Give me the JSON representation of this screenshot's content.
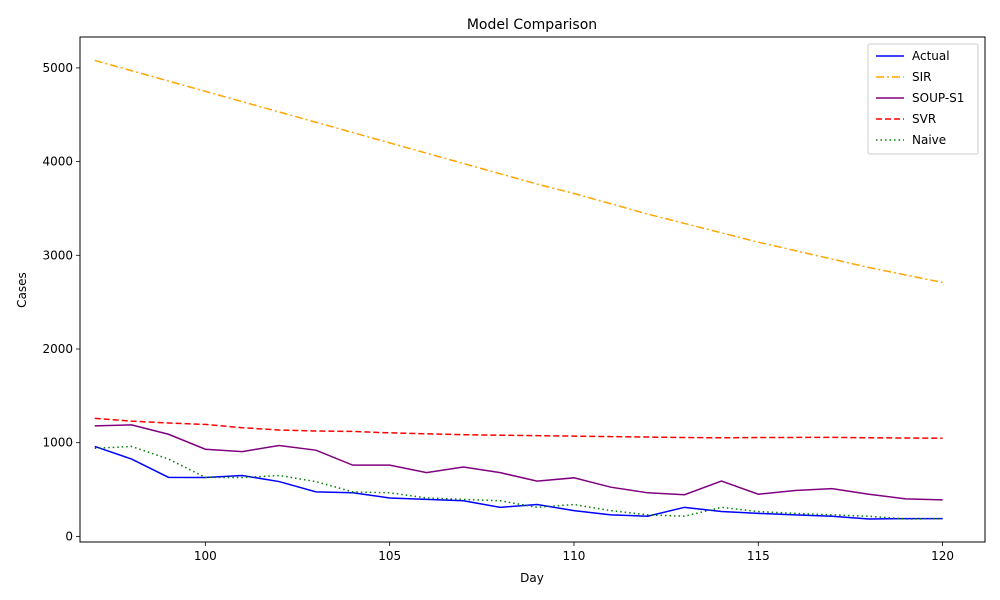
{
  "chart_data": {
    "type": "line",
    "title": "Model Comparison",
    "xlabel": "Day",
    "ylabel": "Cases",
    "xlim": [
      96.6,
      121.15
    ],
    "ylim": [
      -60,
      5330
    ],
    "xticks": [
      100,
      105,
      110,
      115,
      120
    ],
    "yticks": [
      0,
      1000,
      2000,
      3000,
      4000,
      5000
    ],
    "grid": false,
    "legend_position": "top-right",
    "x": [
      97,
      98,
      99,
      100,
      101,
      102,
      103,
      104,
      105,
      106,
      107,
      108,
      109,
      110,
      111,
      112,
      113,
      114,
      115,
      116,
      117,
      118,
      119,
      120
    ],
    "series": [
      {
        "name": "Actual",
        "color": "#0000ff",
        "dash": "solid",
        "values": [
          960,
          825,
          630,
          628,
          650,
          585,
          475,
          465,
          410,
          395,
          380,
          310,
          340,
          275,
          230,
          215,
          310,
          265,
          245,
          230,
          215,
          185,
          190,
          190
        ]
      },
      {
        "name": "SIR",
        "color": "#ffa500",
        "dash": "dashdot",
        "values": [
          5080,
          4970,
          4860,
          4750,
          4640,
          4530,
          4420,
          4310,
          4200,
          4090,
          3980,
          3870,
          3760,
          3660,
          3550,
          3440,
          3340,
          3240,
          3140,
          3050,
          2960,
          2870,
          2790,
          2710
        ]
      },
      {
        "name": "SOUP-S1",
        "color": "#800080",
        "dash": "solid",
        "values": [
          1180,
          1190,
          1090,
          930,
          905,
          970,
          920,
          760,
          760,
          680,
          740,
          680,
          590,
          625,
          525,
          465,
          445,
          590,
          450,
          490,
          510,
          450,
          400,
          390
        ]
      },
      {
        "name": "SVR",
        "color": "#ff0000",
        "dash": "dashed",
        "values": [
          1260,
          1230,
          1210,
          1195,
          1160,
          1135,
          1125,
          1120,
          1105,
          1095,
          1085,
          1080,
          1075,
          1070,
          1065,
          1060,
          1055,
          1052,
          1055,
          1056,
          1057,
          1052,
          1050,
          1048
        ]
      },
      {
        "name": "Naive",
        "color": "#008000",
        "dash": "dotted",
        "values": [
          940,
          960,
          825,
          630,
          628,
          650,
          585,
          475,
          465,
          410,
          395,
          380,
          310,
          340,
          275,
          230,
          215,
          310,
          265,
          245,
          230,
          215,
          185,
          190
        ]
      }
    ]
  }
}
